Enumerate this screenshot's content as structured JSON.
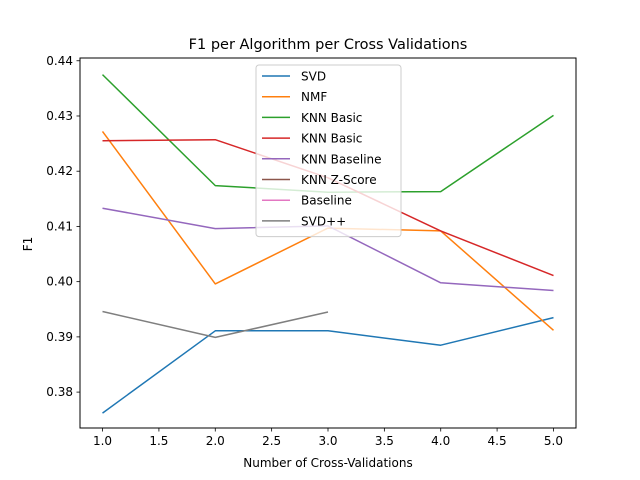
{
  "chart_data": {
    "type": "line",
    "title": "F1 per Algorithm per Cross Validations",
    "xlabel": "Number of Cross-Validations",
    "ylabel": "F1",
    "xlim": [
      0.8,
      5.2
    ],
    "ylim": [
      0.3735,
      0.4405
    ],
    "xticks": [
      1.0,
      1.5,
      2.0,
      2.5,
      3.0,
      3.5,
      4.0,
      4.5,
      5.0
    ],
    "xtick_labels": [
      "1.0",
      "1.5",
      "2.0",
      "2.5",
      "3.0",
      "3.5",
      "4.0",
      "4.5",
      "5.0"
    ],
    "yticks": [
      0.38,
      0.39,
      0.4,
      0.41,
      0.42,
      0.43,
      0.44
    ],
    "ytick_labels": [
      "0.38",
      "0.39",
      "0.40",
      "0.41",
      "0.42",
      "0.43",
      "0.44"
    ],
    "grid": false,
    "legend_position": "upper-center",
    "series": [
      {
        "name": "SVD",
        "color": "#1f77b4",
        "x": [
          1,
          2,
          3,
          4,
          5
        ],
        "y": [
          0.3762,
          0.3911,
          0.3911,
          0.3885,
          0.3935
        ]
      },
      {
        "name": "NMF",
        "color": "#ff7f0e",
        "x": [
          1,
          2,
          3,
          4,
          5
        ],
        "y": [
          0.4272,
          0.3996,
          0.4097,
          0.4092,
          0.3912
        ]
      },
      {
        "name": "KNN Basic",
        "color": "#2ca02c",
        "x": [
          1,
          2,
          3,
          4,
          5
        ],
        "y": [
          0.4375,
          0.4174,
          0.4162,
          0.4163,
          0.4301
        ]
      },
      {
        "name": "KNN Basic",
        "color": "#d62728",
        "x": [
          1,
          2,
          3,
          4,
          5
        ],
        "y": [
          0.4255,
          0.4257,
          0.4188,
          0.4092,
          0.4011
        ]
      },
      {
        "name": "KNN Baseline",
        "color": "#9467bd",
        "x": [
          1,
          2,
          3,
          4,
          5
        ],
        "y": [
          0.4133,
          0.4096,
          0.4101,
          0.3998,
          0.3984
        ]
      },
      {
        "name": "KNN Z-Score",
        "color": "#8c564b",
        "x": [],
        "y": []
      },
      {
        "name": "Baseline",
        "color": "#e377c2",
        "x": [],
        "y": []
      },
      {
        "name": "SVD++",
        "color": "#7f7f7f",
        "x": [
          1,
          2,
          3
        ],
        "y": [
          0.3946,
          0.3899,
          0.3945
        ]
      }
    ]
  }
}
